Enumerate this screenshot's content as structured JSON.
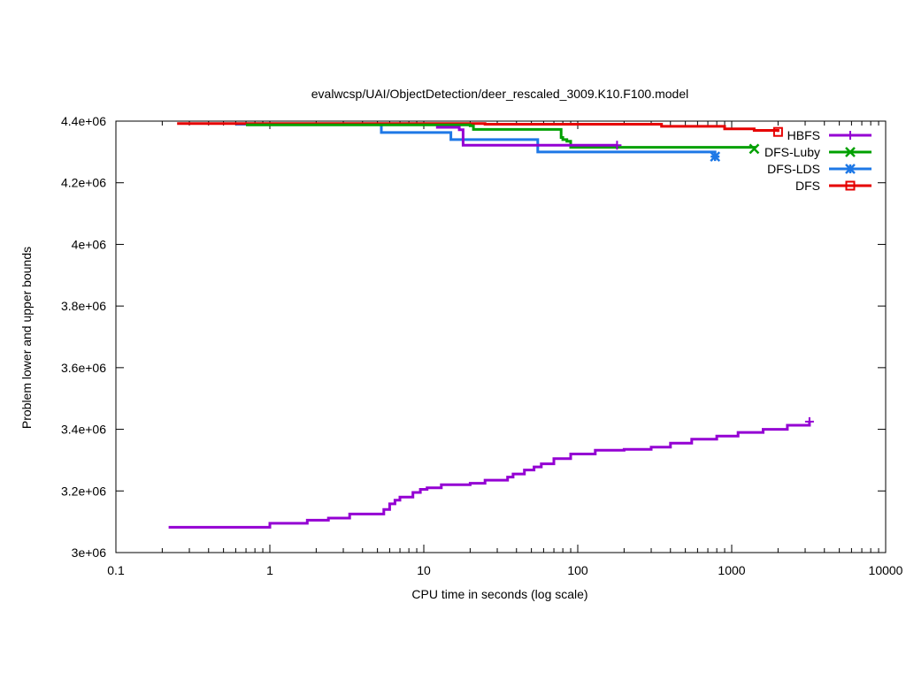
{
  "chart_data": {
    "type": "line",
    "title": "evalwcsp/UAI/ObjectDetection/deer_rescaled_3009.K10.F100.model",
    "xlabel": "CPU time in seconds (log scale)",
    "ylabel": "Problem lower and upper bounds",
    "x_scale": "log",
    "xlim": [
      0.1,
      10000
    ],
    "ylim": [
      3000000,
      4400000
    ],
    "x_ticks": [
      0.1,
      1,
      10,
      100,
      1000,
      10000
    ],
    "x_tick_labels": [
      "0.1",
      "1",
      "10",
      "100",
      "1000",
      "10000"
    ],
    "y_ticks": [
      3000000,
      3200000,
      3400000,
      3600000,
      3800000,
      4000000,
      4200000,
      4400000
    ],
    "y_tick_labels": [
      "3e+06",
      "3.2e+06",
      "3.4e+06",
      "3.6e+06",
      "3.8e+06",
      "4e+06",
      "4.2e+06",
      "4.4e+06"
    ],
    "grid": false,
    "legend_position": "top-right",
    "series": [
      {
        "name": "HBFS",
        "color": "#9400d3",
        "marker": "plus",
        "lower_bound": {
          "x": [
            0.22,
            1.0,
            1.75,
            2.4,
            3.3,
            5.5,
            6.0,
            6.5,
            7.0,
            8.5,
            9.5,
            10.5,
            13,
            20,
            25,
            35,
            38,
            45,
            52,
            58,
            70,
            90,
            130,
            200,
            300,
            400,
            550,
            800,
            1100,
            1600,
            2300,
            3200
          ],
          "y": [
            3082000,
            3095000,
            3105000,
            3112000,
            3125000,
            3140000,
            3158000,
            3170000,
            3180000,
            3195000,
            3205000,
            3210000,
            3220000,
            3225000,
            3235000,
            3245000,
            3255000,
            3268000,
            3278000,
            3288000,
            3305000,
            3320000,
            3332000,
            3335000,
            3342000,
            3355000,
            3368000,
            3378000,
            3390000,
            3400000,
            3413000,
            3425000
          ]
        },
        "upper_bound": {
          "x": [
            12,
            17,
            18,
            180
          ],
          "y": [
            4380000,
            4372000,
            4322000,
            4322000
          ]
        }
      },
      {
        "name": "DFS-Luby",
        "color": "#00a000",
        "marker": "cross",
        "upper_bound": {
          "x": [
            0.7,
            20,
            21,
            78,
            80,
            85,
            90,
            1400
          ],
          "y": [
            4388000,
            4385000,
            4373000,
            4347000,
            4340000,
            4335000,
            4315000,
            4310000
          ]
        }
      },
      {
        "name": "DFS-LDS",
        "color": "#1e78e6",
        "marker": "star",
        "upper_bound": {
          "x": [
            0.6,
            5.3,
            15,
            55,
            780
          ],
          "y": [
            4390000,
            4363000,
            4340000,
            4300000,
            4285000
          ]
        }
      },
      {
        "name": "DFS",
        "color": "#e60000",
        "marker": "square",
        "upper_bound": {
          "x": [
            0.25,
            25,
            350,
            900,
            1400,
            2000
          ],
          "y": [
            4392000,
            4390000,
            4383000,
            4375000,
            4370000,
            4365000
          ]
        }
      }
    ]
  }
}
